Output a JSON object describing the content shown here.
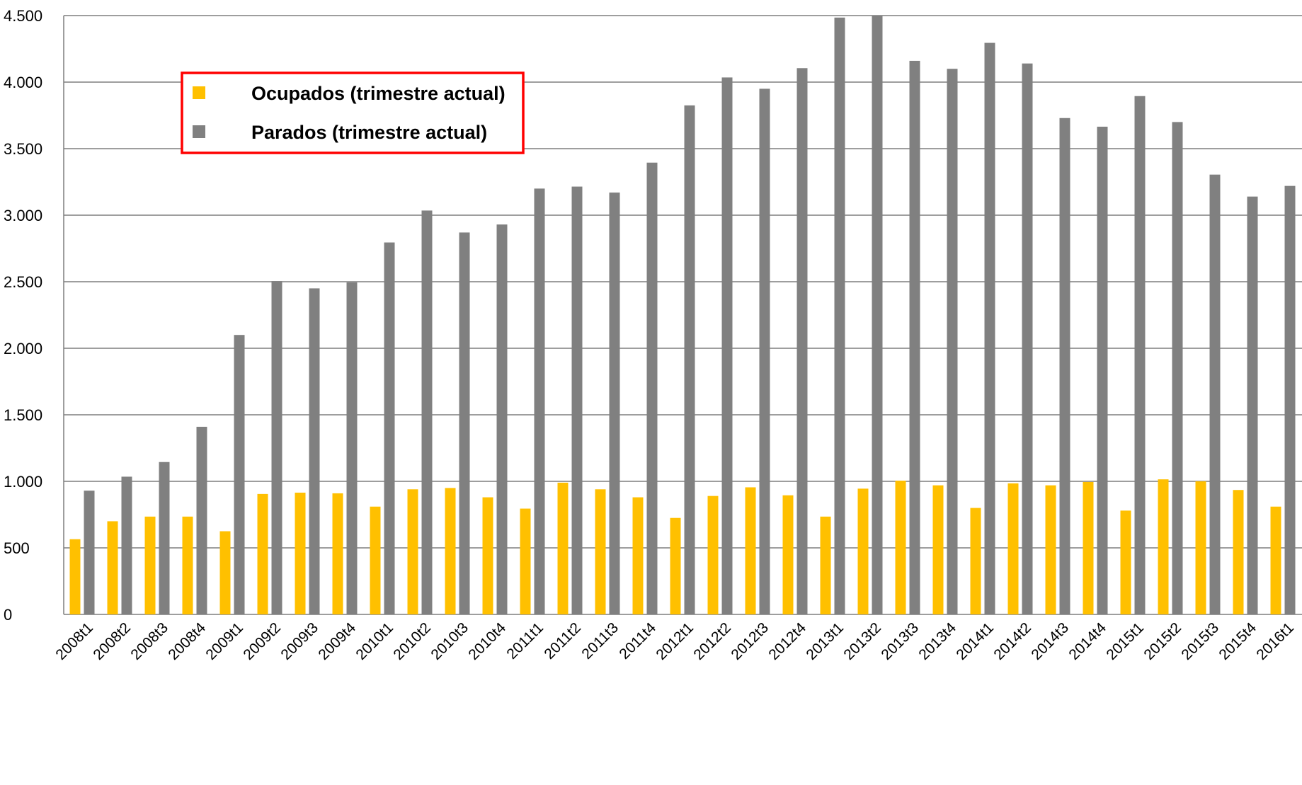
{
  "chart_data": {
    "type": "bar",
    "categories": [
      "2008t1",
      "2008t2",
      "2008t3",
      "2008t4",
      "2009t1",
      "2009t2",
      "2009t3",
      "2009t4",
      "2010t1",
      "2010t2",
      "2010t3",
      "2010t4",
      "2011t1",
      "2011t2",
      "2011t3",
      "2011t4",
      "2012t1",
      "2012t2",
      "2012t3",
      "2012t4",
      "2013t1",
      "2013t2",
      "2013t3",
      "2013t4",
      "2014t1",
      "2014t2",
      "2014t3",
      "2014t4",
      "2015t1",
      "2015t2",
      "2015t3",
      "2015t4",
      "2016t1"
    ],
    "series": [
      {
        "name": "Ocupados (trimestre actual)",
        "color": "#FFC000",
        "values": [
          565,
          700,
          735,
          735,
          625,
          905,
          915,
          910,
          810,
          940,
          950,
          880,
          795,
          990,
          940,
          880,
          725,
          890,
          955,
          895,
          735,
          945,
          1005,
          970,
          800,
          985,
          970,
          995,
          780,
          1015,
          1000,
          935,
          810
        ]
      },
      {
        "name": "Parados (trimestre actual)",
        "color": "#808080",
        "values": [
          930,
          1035,
          1145,
          1410,
          2100,
          2505,
          2450,
          2495,
          2795,
          3035,
          2870,
          2930,
          3200,
          3215,
          3170,
          3395,
          3825,
          4035,
          3950,
          4105,
          4485,
          4500,
          4160,
          4100,
          4295,
          4140,
          3730,
          3665,
          3895,
          3700,
          3305,
          3140,
          3220
        ]
      }
    ],
    "ylim": [
      0,
      4500
    ],
    "yticks": [
      0,
      500,
      1000,
      1500,
      2000,
      2500,
      3000,
      3500,
      4000,
      4500
    ],
    "ytick_labels": [
      "0",
      "500",
      "1.000",
      "1.500",
      "2.000",
      "2.500",
      "3.000",
      "3.500",
      "4.000",
      "4.500"
    ],
    "grid": true,
    "legend_position": "top-left",
    "legend_border_color": "#FF0000",
    "title": "",
    "xlabel": "",
    "ylabel": ""
  }
}
